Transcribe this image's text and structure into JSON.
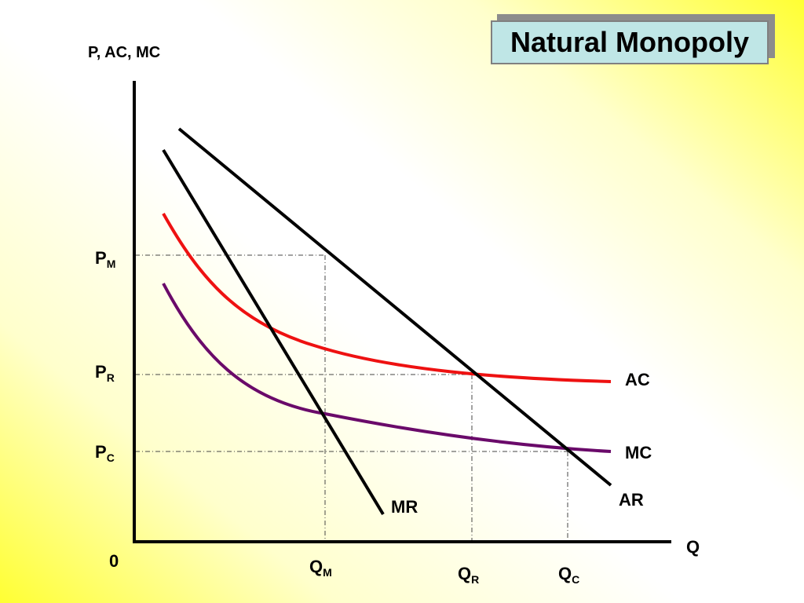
{
  "title": "Natural Monopoly",
  "axes": {
    "y_label": "P, AC, MC",
    "x_label": "Q",
    "origin": "0"
  },
  "price_labels": {
    "pm": {
      "main": "P",
      "sub": "M"
    },
    "pr": {
      "main": "P",
      "sub": "R"
    },
    "pc": {
      "main": "P",
      "sub": "C"
    }
  },
  "quantity_labels": {
    "qm": {
      "main": "Q",
      "sub": "M"
    },
    "qr": {
      "main": "Q",
      "sub": "R"
    },
    "qc": {
      "main": "Q",
      "sub": "C"
    }
  },
  "curves": {
    "ac": {
      "label": "AC",
      "color": "#ee1111"
    },
    "mc": {
      "label": "MC",
      "color": "#6a0a6a"
    },
    "ar": {
      "label": "AR",
      "color": "#000000"
    },
    "mr": {
      "label": "MR",
      "color": "#000000"
    }
  }
}
